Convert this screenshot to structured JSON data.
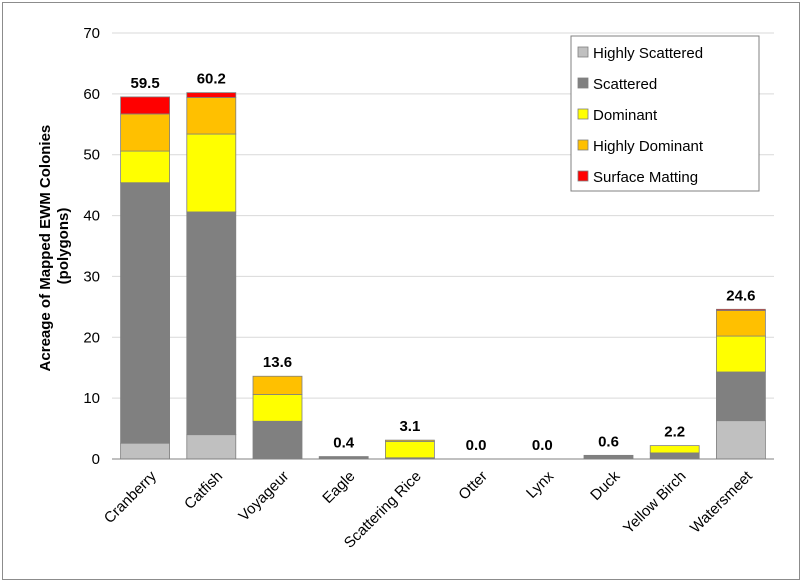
{
  "chart_data": {
    "type": "bar",
    "stacked": true,
    "categories": [
      "Cranberry",
      "Catfish",
      "Voyageur",
      "Eagle",
      "Scattering Rice",
      "Otter",
      "Lynx",
      "Duck",
      "Yellow Birch",
      "Watersmeet"
    ],
    "series": [
      {
        "name": "Highly Scattered",
        "color": "#c0c0c0",
        "values": [
          2.6,
          4.0,
          0.0,
          0.0,
          0.0,
          0.0,
          0.0,
          0.0,
          0.0,
          6.3
        ]
      },
      {
        "name": "Scattered",
        "color": "#808080",
        "values": [
          42.8,
          36.6,
          6.2,
          0.4,
          0.2,
          0.0,
          0.0,
          0.6,
          1.0,
          8.0
        ]
      },
      {
        "name": "Dominant",
        "color": "#ffff00",
        "values": [
          5.2,
          12.8,
          4.4,
          0.0,
          2.7,
          0.0,
          0.0,
          0.0,
          1.2,
          5.9
        ]
      },
      {
        "name": "Highly Dominant",
        "color": "#ffc000",
        "values": [
          6.1,
          6.0,
          3.0,
          0.0,
          0.2,
          0.0,
          0.0,
          0.0,
          0.0,
          4.2
        ]
      },
      {
        "name": "Surface Matting",
        "color": "#ff0000",
        "values": [
          2.8,
          0.8,
          0.0,
          0.0,
          0.0,
          0.0,
          0.0,
          0.0,
          0.0,
          0.2
        ]
      }
    ],
    "totals": [
      "59.5",
      "60.2",
      "13.6",
      "0.4",
      "3.1",
      "0.0",
      "0.0",
      "0.6",
      "2.2",
      "24.6"
    ],
    "ylabel_line1": "Acreage of Mapped EWM Colonies",
    "ylabel_line2": "(polygons)",
    "xlabel": "",
    "ylim": [
      0,
      70
    ],
    "yticks": [
      0,
      10,
      20,
      30,
      40,
      50,
      60,
      70
    ],
    "grid": true,
    "legend_position": "top-right"
  }
}
